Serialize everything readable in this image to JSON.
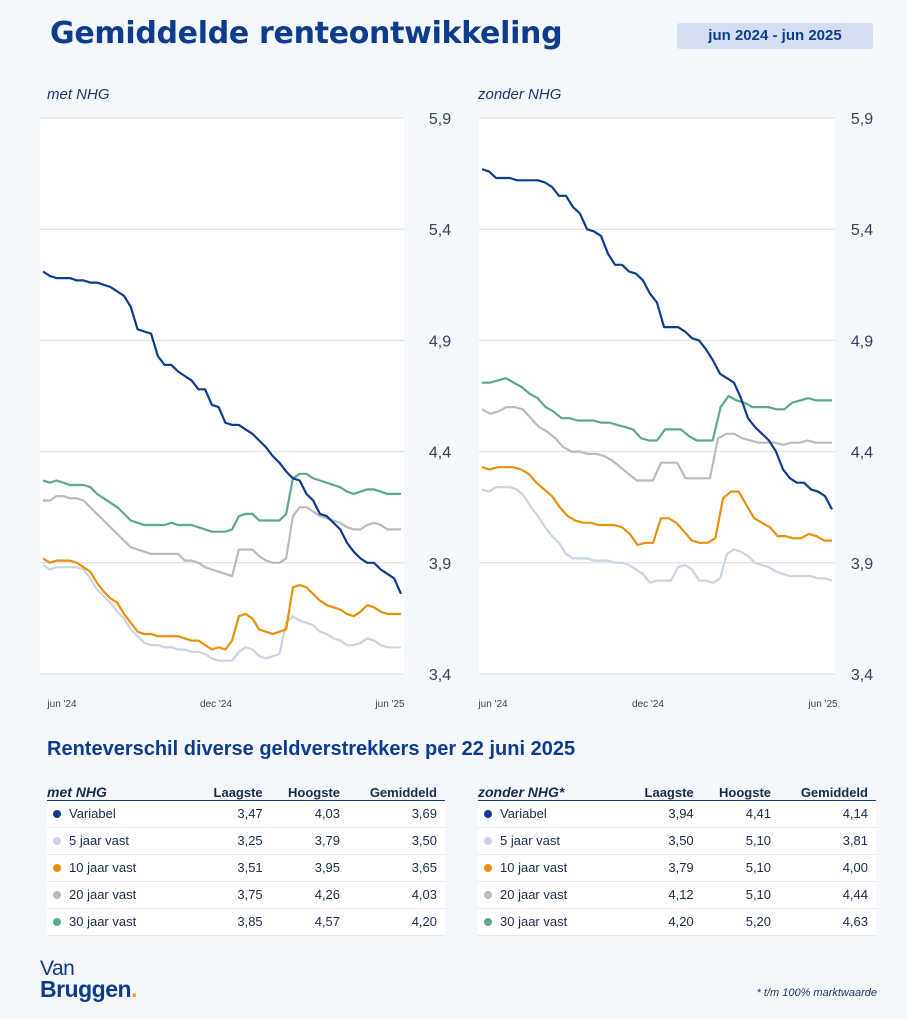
{
  "header": {
    "title": "Gemiddelde renteontwikkeling",
    "period": "jun 2024 - jun 2025"
  },
  "colors": {
    "Variabel": "#0d3c8c",
    "5 jaar vast": "#ccd4e1",
    "10 jaar vast": "#e8900c",
    "20 jaar vast": "#bbbbbb",
    "30 jaar vast": "#5ea88a"
  },
  "chart_data": [
    {
      "type": "line",
      "title": "met NHG",
      "ylim": [
        3.4,
        5.9
      ],
      "yticks": [
        "5,9",
        "5,4",
        "4,9",
        "4,4",
        "3,9",
        "3,4"
      ],
      "xticks": [
        "jun '24",
        "dec '24",
        "jun '25"
      ],
      "grid": true,
      "series": [
        {
          "name": "Variabel",
          "values": [
            5.21,
            5.19,
            5.18,
            5.18,
            5.18,
            5.17,
            5.17,
            5.16,
            5.16,
            5.15,
            5.14,
            5.12,
            5.1,
            5.05,
            4.95,
            4.94,
            4.93,
            4.83,
            4.79,
            4.79,
            4.76,
            4.74,
            4.72,
            4.68,
            4.68,
            4.61,
            4.6,
            4.53,
            4.52,
            4.52,
            4.5,
            4.48,
            4.45,
            4.42,
            4.38,
            4.35,
            4.31,
            4.28,
            4.27,
            4.21,
            4.18,
            4.12,
            4.11,
            4.08,
            4.05,
            3.99,
            3.95,
            3.92,
            3.9,
            3.9,
            3.87,
            3.85,
            3.83,
            3.76
          ]
        },
        {
          "name": "5 jaar vast",
          "values": [
            3.89,
            3.87,
            3.88,
            3.88,
            3.88,
            3.88,
            3.87,
            3.83,
            3.78,
            3.75,
            3.72,
            3.68,
            3.65,
            3.6,
            3.57,
            3.54,
            3.53,
            3.53,
            3.52,
            3.52,
            3.51,
            3.51,
            3.5,
            3.5,
            3.49,
            3.47,
            3.46,
            3.46,
            3.46,
            3.5,
            3.52,
            3.51,
            3.48,
            3.47,
            3.48,
            3.49,
            3.63,
            3.66,
            3.64,
            3.63,
            3.62,
            3.59,
            3.58,
            3.56,
            3.55,
            3.53,
            3.53,
            3.54,
            3.56,
            3.55,
            3.53,
            3.52,
            3.52,
            3.52
          ]
        },
        {
          "name": "10 jaar vast",
          "values": [
            3.92,
            3.9,
            3.91,
            3.91,
            3.91,
            3.9,
            3.88,
            3.86,
            3.81,
            3.77,
            3.74,
            3.72,
            3.67,
            3.63,
            3.59,
            3.58,
            3.58,
            3.57,
            3.57,
            3.57,
            3.57,
            3.56,
            3.55,
            3.55,
            3.53,
            3.51,
            3.52,
            3.51,
            3.55,
            3.66,
            3.67,
            3.65,
            3.6,
            3.59,
            3.58,
            3.59,
            3.6,
            3.79,
            3.8,
            3.79,
            3.76,
            3.73,
            3.71,
            3.7,
            3.69,
            3.67,
            3.66,
            3.68,
            3.71,
            3.7,
            3.68,
            3.67,
            3.67,
            3.67
          ]
        },
        {
          "name": "20 jaar vast",
          "values": [
            4.18,
            4.18,
            4.2,
            4.2,
            4.19,
            4.19,
            4.18,
            4.15,
            4.12,
            4.09,
            4.06,
            4.03,
            4.0,
            3.97,
            3.96,
            3.95,
            3.94,
            3.94,
            3.94,
            3.94,
            3.94,
            3.91,
            3.91,
            3.9,
            3.88,
            3.87,
            3.86,
            3.85,
            3.84,
            3.96,
            3.96,
            3.96,
            3.93,
            3.91,
            3.9,
            3.9,
            3.92,
            4.11,
            4.15,
            4.15,
            4.13,
            4.11,
            4.1,
            4.09,
            4.08,
            4.06,
            4.05,
            4.05,
            4.07,
            4.08,
            4.07,
            4.05,
            4.05,
            4.05
          ]
        },
        {
          "name": "30 jaar vast",
          "values": [
            4.27,
            4.26,
            4.27,
            4.26,
            4.25,
            4.25,
            4.25,
            4.24,
            4.21,
            4.19,
            4.17,
            4.15,
            4.12,
            4.09,
            4.08,
            4.07,
            4.07,
            4.07,
            4.07,
            4.08,
            4.07,
            4.07,
            4.07,
            4.06,
            4.05,
            4.04,
            4.04,
            4.04,
            4.05,
            4.11,
            4.12,
            4.12,
            4.09,
            4.09,
            4.09,
            4.09,
            4.12,
            4.28,
            4.3,
            4.3,
            4.28,
            4.27,
            4.26,
            4.25,
            4.24,
            4.22,
            4.21,
            4.22,
            4.23,
            4.23,
            4.22,
            4.21,
            4.21,
            4.21
          ]
        }
      ]
    },
    {
      "type": "line",
      "title": "zonder NHG",
      "ylim": [
        3.4,
        5.9
      ],
      "yticks": [
        "5,9",
        "5,4",
        "4,9",
        "4,4",
        "3,9",
        "3,4"
      ],
      "xticks": [
        "jun '24",
        "dec '24",
        "jun '25"
      ],
      "grid": true,
      "series": [
        {
          "name": "Variabel",
          "values": [
            5.67,
            5.66,
            5.63,
            5.63,
            5.63,
            5.62,
            5.62,
            5.62,
            5.62,
            5.61,
            5.59,
            5.55,
            5.55,
            5.5,
            5.47,
            5.4,
            5.39,
            5.37,
            5.29,
            5.24,
            5.24,
            5.21,
            5.2,
            5.17,
            5.11,
            5.07,
            4.96,
            4.96,
            4.96,
            4.94,
            4.91,
            4.9,
            4.86,
            4.81,
            4.75,
            4.73,
            4.71,
            4.64,
            4.55,
            4.51,
            4.48,
            4.45,
            4.4,
            4.32,
            4.28,
            4.26,
            4.26,
            4.23,
            4.22,
            4.2,
            4.14
          ]
        },
        {
          "name": "5 jaar vast",
          "values": [
            4.23,
            4.22,
            4.24,
            4.24,
            4.24,
            4.23,
            4.2,
            4.15,
            4.11,
            4.06,
            4.02,
            3.99,
            3.94,
            3.92,
            3.92,
            3.92,
            3.91,
            3.91,
            3.91,
            3.9,
            3.9,
            3.89,
            3.87,
            3.85,
            3.81,
            3.82,
            3.82,
            3.82,
            3.88,
            3.89,
            3.87,
            3.82,
            3.82,
            3.81,
            3.83,
            3.94,
            3.96,
            3.95,
            3.93,
            3.9,
            3.89,
            3.88,
            3.86,
            3.85,
            3.84,
            3.84,
            3.84,
            3.84,
            3.83,
            3.83,
            3.82
          ]
        },
        {
          "name": "10 jaar vast",
          "values": [
            4.33,
            4.32,
            4.33,
            4.33,
            4.33,
            4.32,
            4.3,
            4.26,
            4.23,
            4.2,
            4.15,
            4.11,
            4.09,
            4.08,
            4.08,
            4.07,
            4.07,
            4.07,
            4.06,
            4.03,
            3.98,
            3.99,
            3.99,
            4.1,
            4.1,
            4.08,
            4.04,
            4.0,
            3.99,
            3.99,
            4.01,
            4.19,
            4.22,
            4.22,
            4.16,
            4.1,
            4.08,
            4.06,
            4.02,
            4.02,
            4.01,
            4.01,
            4.03,
            4.02,
            4.0,
            4.0
          ]
        },
        {
          "name": "20 jaar vast",
          "values": [
            4.59,
            4.57,
            4.58,
            4.6,
            4.6,
            4.59,
            4.55,
            4.51,
            4.49,
            4.46,
            4.42,
            4.4,
            4.4,
            4.39,
            4.39,
            4.38,
            4.36,
            4.33,
            4.3,
            4.27,
            4.27,
            4.27,
            4.35,
            4.35,
            4.35,
            4.28,
            4.28,
            4.28,
            4.28,
            4.46,
            4.48,
            4.48,
            4.46,
            4.45,
            4.44,
            4.44,
            4.44,
            4.43,
            4.44,
            4.44,
            4.45,
            4.44,
            4.44,
            4.44
          ]
        },
        {
          "name": "30 jaar vast",
          "values": [
            4.71,
            4.71,
            4.72,
            4.73,
            4.71,
            4.69,
            4.66,
            4.64,
            4.6,
            4.58,
            4.55,
            4.55,
            4.54,
            4.54,
            4.54,
            4.53,
            4.53,
            4.52,
            4.51,
            4.5,
            4.46,
            4.45,
            4.45,
            4.5,
            4.5,
            4.5,
            4.47,
            4.45,
            4.45,
            4.45,
            4.6,
            4.65,
            4.63,
            4.62,
            4.6,
            4.6,
            4.6,
            4.59,
            4.59,
            4.62,
            4.63,
            4.64,
            4.63,
            4.63,
            4.63
          ]
        }
      ]
    }
  ],
  "section": {
    "title": "Renteverschil diverse geldverstrekkers per 22 juni 2025"
  },
  "tables": [
    {
      "name": "met NHG",
      "columns": [
        "Laagste",
        "Hoogste",
        "Gemiddeld"
      ],
      "rows": [
        {
          "label": "Variabel",
          "values": [
            "3,47",
            "4,03",
            "3,69"
          ]
        },
        {
          "label": "5 jaar vast",
          "values": [
            "3,25",
            "3,79",
            "3,50"
          ]
        },
        {
          "label": "10 jaar vast",
          "values": [
            "3,51",
            "3,95",
            "3,65"
          ]
        },
        {
          "label": "20 jaar vast",
          "values": [
            "3,75",
            "4,26",
            "4,03"
          ]
        },
        {
          "label": "30 jaar vast",
          "values": [
            "3,85",
            "4,57",
            "4,20"
          ]
        }
      ]
    },
    {
      "name": "zonder NHG*",
      "columns": [
        "Laagste",
        "Hoogste",
        "Gemiddeld"
      ],
      "rows": [
        {
          "label": "Variabel",
          "values": [
            "3,94",
            "4,41",
            "4,14"
          ]
        },
        {
          "label": "5 jaar vast",
          "values": [
            "3,50",
            "5,10",
            "3,81"
          ]
        },
        {
          "label": "10 jaar vast",
          "values": [
            "3,79",
            "5,10",
            "4,00"
          ]
        },
        {
          "label": "20 jaar vast",
          "values": [
            "4,12",
            "5,10",
            "4,44"
          ]
        },
        {
          "label": "30 jaar vast",
          "values": [
            "4,20",
            "5,20",
            "4,63"
          ]
        }
      ]
    }
  ],
  "logo": {
    "line1": "Van",
    "line2": "Bruggen",
    "dot": "."
  },
  "footnote": "* t/m 100% marktwaarde"
}
